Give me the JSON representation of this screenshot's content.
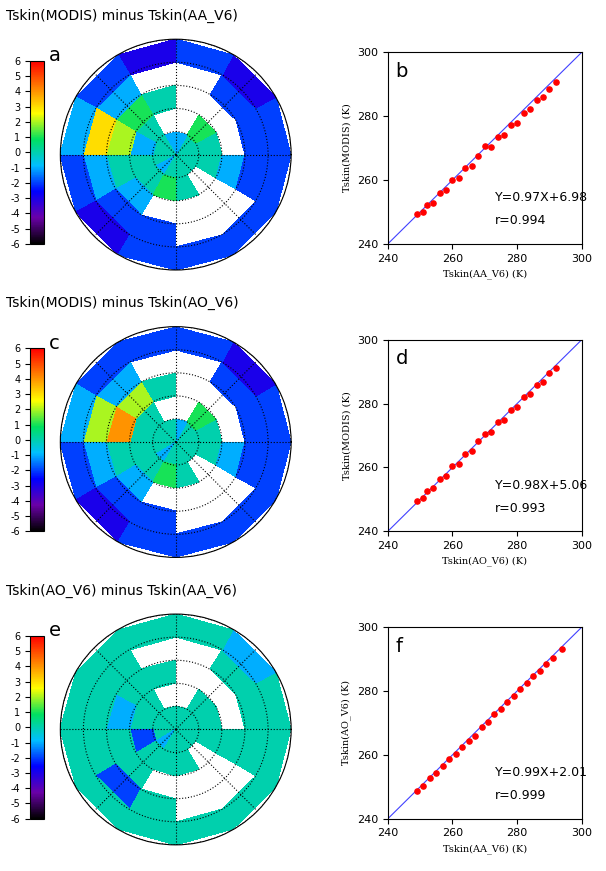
{
  "chart_data": [
    {
      "type": "heatmap",
      "label": "a",
      "title": "Tskin(MODIS) minus Tskin(AA_V6)",
      "cells": [
        [
          0,
          0,
          -1,
          -1,
          0,
          0,
          0,
          -1,
          0,
          0,
          0,
          0
        ],
        [
          0,
          1,
          null,
          null,
          0,
          -1,
          0,
          0,
          1,
          0,
          null,
          0
        ],
        [
          null,
          null,
          null,
          0,
          1,
          2,
          0,
          -1,
          null,
          null,
          null,
          -1
        ],
        [
          -2,
          -2,
          null,
          null,
          -1,
          3,
          -1,
          -2,
          -2,
          null,
          null,
          -2
        ],
        [
          -2,
          -3,
          -2,
          -3,
          -2,
          -1,
          -2,
          -3,
          -2,
          -2,
          -2,
          -2
        ]
      ],
      "colorbar_range": [
        -6,
        6
      ],
      "colorbar_ticks": [
        -6,
        -5,
        -4,
        -3,
        -2,
        -1,
        0,
        1,
        2,
        3,
        4,
        5,
        6
      ],
      "tick_labels": false,
      "grid": true
    },
    {
      "type": "scatter",
      "label": "b",
      "x_label": "Tskin(AA_V6) (K)",
      "y_label": "Tskin(MODIS) (K)",
      "annotations": [
        "Y=0.97X+6.98",
        "r=0.994"
      ],
      "color": "#ff0000",
      "marker": "o",
      "x": [
        249,
        251,
        252,
        254,
        256,
        258,
        260,
        262,
        264,
        266,
        268,
        270,
        272,
        274,
        276,
        278,
        280,
        282,
        284,
        286,
        288,
        290,
        292
      ],
      "values": [
        249.5,
        250.0,
        252.3,
        252.8,
        256.0,
        256.8,
        259.9,
        260.6,
        263.8,
        264.4,
        267.6,
        270.5,
        270.2,
        273.4,
        274.2,
        277.1,
        278.0,
        281.0,
        282.2,
        284.9,
        286.0,
        288.6,
        290.8
      ],
      "xlim": [
        240,
        300
      ],
      "ylim": [
        240,
        300
      ],
      "xticks": [
        240,
        260,
        280,
        300
      ],
      "yticks": [
        240,
        260,
        280,
        300
      ],
      "grid": false
    },
    {
      "type": "heatmap",
      "label": "c",
      "title": "Tskin(MODIS) minus Tskin(AO_V6)",
      "cells": [
        [
          0,
          0,
          -1,
          0,
          0,
          0,
          0,
          -1,
          0,
          0,
          0,
          0
        ],
        [
          0,
          1,
          null,
          null,
          0,
          0,
          0,
          0,
          1,
          0,
          null,
          0
        ],
        [
          null,
          null,
          null,
          0,
          2,
          4,
          0,
          -1,
          null,
          null,
          null,
          -1
        ],
        [
          -2,
          -2,
          null,
          null,
          -1,
          2,
          -1,
          -2,
          -2,
          null,
          null,
          -2
        ],
        [
          -2,
          -3,
          -2,
          -2,
          -2,
          -1,
          -2,
          -3,
          -2,
          -2,
          -2,
          -2
        ]
      ],
      "colorbar_range": [
        -6,
        6
      ],
      "colorbar_ticks": [
        -6,
        -5,
        -4,
        -3,
        -2,
        -1,
        0,
        1,
        2,
        3,
        4,
        5,
        6
      ],
      "tick_labels": false,
      "grid": true
    },
    {
      "type": "scatter",
      "label": "d",
      "x_label": "Tskin(AO_V6) (K)",
      "y_label": "Tskin(MODIS) (K)",
      "annotations": [
        "Y=0.98X+5.06",
        "r=0.993"
      ],
      "color": "#ff0000",
      "marker": "o",
      "x": [
        249,
        251,
        252,
        254,
        256,
        258,
        260,
        262,
        264,
        266,
        268,
        270,
        272,
        274,
        276,
        278,
        280,
        282,
        284,
        286,
        288,
        290,
        292
      ],
      "values": [
        249.6,
        250.5,
        252.6,
        253.5,
        256.4,
        257.3,
        260.5,
        261.2,
        264.3,
        265.1,
        268.4,
        270.5,
        271.0,
        274.2,
        274.9,
        278.1,
        279.0,
        282.0,
        282.9,
        285.9,
        286.8,
        289.7,
        291.0
      ],
      "xlim": [
        240,
        300
      ],
      "ylim": [
        240,
        300
      ],
      "xticks": [
        240,
        260,
        280,
        300
      ],
      "yticks": [
        240,
        260,
        280,
        300
      ],
      "grid": false
    },
    {
      "type": "heatmap",
      "label": "e",
      "title": "Tskin(AO_V6) minus Tskin(AA_V6)",
      "cells": [
        [
          0,
          0,
          0,
          0,
          0,
          0,
          0,
          -1,
          0,
          0,
          0,
          0
        ],
        [
          0,
          0,
          null,
          null,
          0,
          0,
          -2,
          0,
          0,
          0,
          null,
          0
        ],
        [
          null,
          null,
          null,
          0,
          0,
          -1,
          0,
          0,
          null,
          null,
          null,
          0
        ],
        [
          0,
          0,
          null,
          null,
          0,
          0,
          0,
          -2,
          0,
          null,
          null,
          0
        ],
        [
          0,
          -1,
          0,
          0,
          0,
          0,
          0,
          0,
          0,
          0,
          0,
          0
        ]
      ],
      "colorbar_range": [
        -6,
        6
      ],
      "colorbar_ticks": [
        -6,
        -5,
        -4,
        -3,
        -2,
        -1,
        0,
        1,
        2,
        3,
        4,
        5,
        6
      ],
      "tick_labels": false,
      "grid": true
    },
    {
      "type": "scatter",
      "label": "f",
      "x_label": "Tskin(AA_V6) (K)",
      "y_label": "Tskin(AO_V6) (K)",
      "annotations": [
        "Y=0.99X+2.01",
        "r=0.999"
      ],
      "color": "#ff0000",
      "marker": "o",
      "x": [
        249,
        251,
        253,
        255,
        257,
        259,
        261,
        263,
        265,
        267,
        269,
        271,
        273,
        275,
        277,
        279,
        281,
        283,
        285,
        287,
        289,
        291,
        294
      ],
      "values": [
        248.6,
        250.4,
        252.6,
        254.4,
        256.5,
        258.7,
        260.3,
        262.6,
        264.3,
        265.8,
        268.6,
        270.3,
        272.7,
        274.4,
        276.6,
        278.3,
        280.7,
        282.4,
        284.6,
        286.3,
        288.6,
        290.4,
        293.1
      ],
      "xlim": [
        240,
        300
      ],
      "ylim": [
        240,
        300
      ],
      "xticks": [
        240,
        260,
        280,
        300
      ],
      "yticks": [
        240,
        260,
        280,
        300
      ],
      "grid": false
    }
  ]
}
